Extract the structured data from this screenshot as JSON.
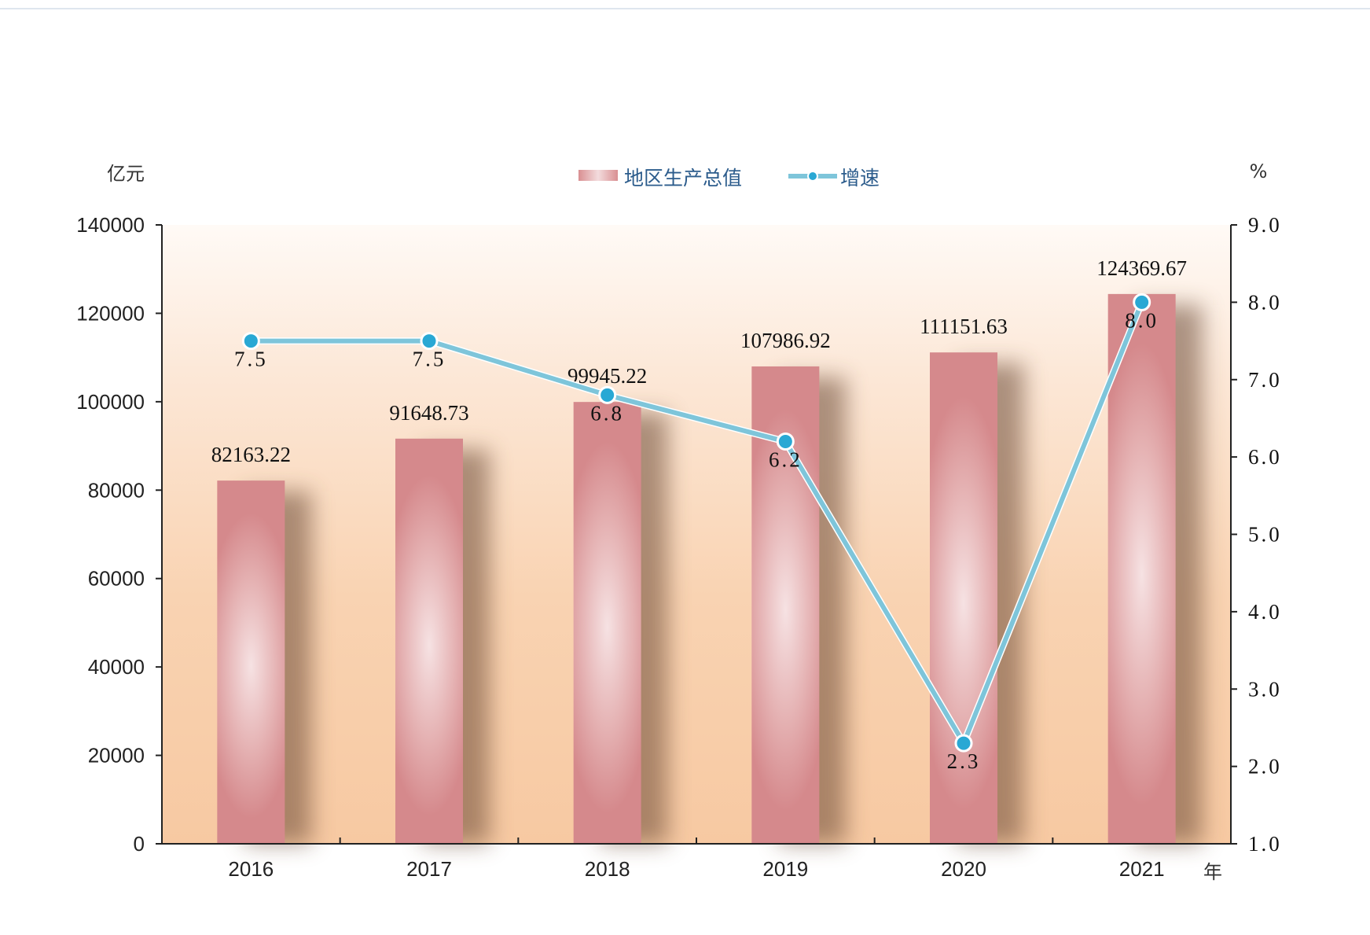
{
  "chart_data": {
    "type": "bar",
    "categories": [
      "2016",
      "2017",
      "2018",
      "2019",
      "2020",
      "2021"
    ],
    "series": [
      {
        "name": "地区生产总值",
        "type": "bar",
        "axis": "left",
        "values": [
          82163.22,
          91648.73,
          99945.22,
          107986.92,
          111151.63,
          124369.67
        ],
        "labels": [
          "82163.22",
          "91648.73",
          "99945.22",
          "107986.92",
          "111151.63",
          "124369.67"
        ],
        "color": "#d98f92"
      },
      {
        "name": "增速",
        "type": "line",
        "axis": "right",
        "values": [
          7.5,
          7.5,
          6.8,
          6.2,
          2.3,
          8.0
        ],
        "labels": [
          "7.5",
          "7.5",
          "6.8",
          "6.2",
          "2.3",
          "8.0"
        ],
        "color": "#7ec5da",
        "marker_color": "#29a8d4"
      }
    ],
    "y_left": {
      "unit": "亿元",
      "ylim": [
        0,
        140000
      ],
      "ticks": [
        "0",
        "20000",
        "40000",
        "60000",
        "80000",
        "100000",
        "120000",
        "140000"
      ]
    },
    "y_right": {
      "unit": "%",
      "ylim": [
        1.0,
        9.0
      ],
      "ticks": [
        "1.0",
        "2.0",
        "3.0",
        "4.0",
        "5.0",
        "6.0",
        "7.0",
        "8.0",
        "9.0"
      ]
    },
    "x_unit": "年",
    "legend_position": "top-center",
    "grid": false,
    "background": "gradient"
  }
}
